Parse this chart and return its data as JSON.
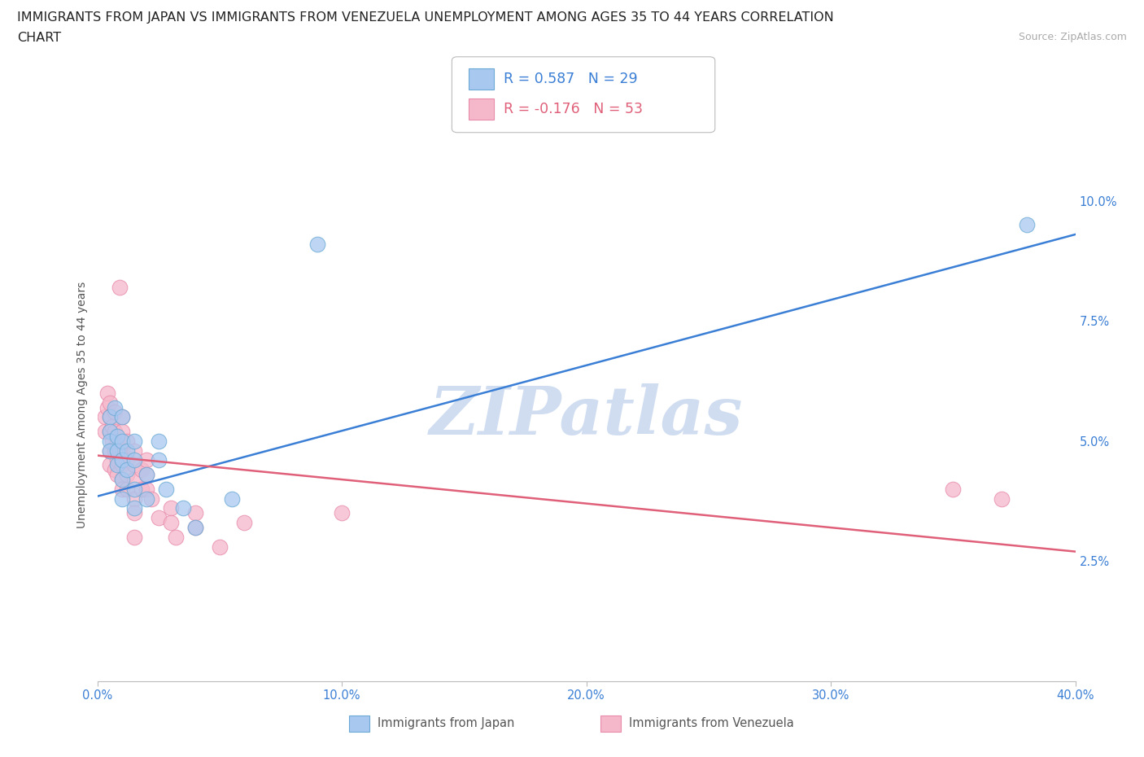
{
  "title_line1": "IMMIGRANTS FROM JAPAN VS IMMIGRANTS FROM VENEZUELA UNEMPLOYMENT AMONG AGES 35 TO 44 YEARS CORRELATION",
  "title_line2": "CHART",
  "source": "Source: ZipAtlas.com",
  "ylabel": "Unemployment Among Ages 35 to 44 years",
  "xlim": [
    0.0,
    0.4
  ],
  "ylim": [
    0.0,
    0.115
  ],
  "xticks": [
    0.0,
    0.1,
    0.2,
    0.3,
    0.4
  ],
  "yticks": [
    0.025,
    0.05,
    0.075,
    0.1
  ],
  "ytick_labels": [
    "2.5%",
    "5.0%",
    "7.5%",
    "10.0%"
  ],
  "xtick_labels": [
    "0.0%",
    "10.0%",
    "20.0%",
    "30.0%",
    "40.0%"
  ],
  "legend_R1": "0.587",
  "legend_N1": "29",
  "legend_R2": "-0.176",
  "legend_N2": "53",
  "japan_color": "#a8c8f0",
  "japan_edge": "#6aaad4",
  "venezuela_color": "#f5b8cb",
  "venezuela_edge": "#e88aaa",
  "japan_scatter": [
    [
      0.005,
      0.055
    ],
    [
      0.005,
      0.052
    ],
    [
      0.005,
      0.05
    ],
    [
      0.005,
      0.048
    ],
    [
      0.007,
      0.057
    ],
    [
      0.008,
      0.051
    ],
    [
      0.008,
      0.048
    ],
    [
      0.008,
      0.045
    ],
    [
      0.01,
      0.055
    ],
    [
      0.01,
      0.05
    ],
    [
      0.01,
      0.046
    ],
    [
      0.01,
      0.042
    ],
    [
      0.01,
      0.038
    ],
    [
      0.012,
      0.048
    ],
    [
      0.012,
      0.044
    ],
    [
      0.015,
      0.05
    ],
    [
      0.015,
      0.046
    ],
    [
      0.015,
      0.04
    ],
    [
      0.015,
      0.036
    ],
    [
      0.02,
      0.043
    ],
    [
      0.02,
      0.038
    ],
    [
      0.025,
      0.05
    ],
    [
      0.025,
      0.046
    ],
    [
      0.028,
      0.04
    ],
    [
      0.035,
      0.036
    ],
    [
      0.04,
      0.032
    ],
    [
      0.055,
      0.038
    ],
    [
      0.09,
      0.091
    ],
    [
      0.38,
      0.095
    ]
  ],
  "venezuela_scatter": [
    [
      0.003,
      0.055
    ],
    [
      0.003,
      0.052
    ],
    [
      0.004,
      0.06
    ],
    [
      0.004,
      0.057
    ],
    [
      0.005,
      0.058
    ],
    [
      0.005,
      0.055
    ],
    [
      0.005,
      0.052
    ],
    [
      0.005,
      0.048
    ],
    [
      0.005,
      0.045
    ],
    [
      0.006,
      0.053
    ],
    [
      0.006,
      0.05
    ],
    [
      0.007,
      0.056
    ],
    [
      0.007,
      0.052
    ],
    [
      0.007,
      0.048
    ],
    [
      0.007,
      0.044
    ],
    [
      0.008,
      0.05
    ],
    [
      0.008,
      0.046
    ],
    [
      0.008,
      0.043
    ],
    [
      0.009,
      0.048
    ],
    [
      0.009,
      0.082
    ],
    [
      0.01,
      0.055
    ],
    [
      0.01,
      0.052
    ],
    [
      0.01,
      0.048
    ],
    [
      0.01,
      0.045
    ],
    [
      0.01,
      0.042
    ],
    [
      0.01,
      0.04
    ],
    [
      0.012,
      0.05
    ],
    [
      0.012,
      0.046
    ],
    [
      0.012,
      0.043
    ],
    [
      0.012,
      0.04
    ],
    [
      0.015,
      0.048
    ],
    [
      0.015,
      0.045
    ],
    [
      0.015,
      0.042
    ],
    [
      0.015,
      0.038
    ],
    [
      0.015,
      0.035
    ],
    [
      0.015,
      0.03
    ],
    [
      0.018,
      0.044
    ],
    [
      0.018,
      0.04
    ],
    [
      0.02,
      0.046
    ],
    [
      0.02,
      0.043
    ],
    [
      0.02,
      0.04
    ],
    [
      0.022,
      0.038
    ],
    [
      0.025,
      0.034
    ],
    [
      0.03,
      0.036
    ],
    [
      0.03,
      0.033
    ],
    [
      0.032,
      0.03
    ],
    [
      0.04,
      0.035
    ],
    [
      0.04,
      0.032
    ],
    [
      0.05,
      0.028
    ],
    [
      0.06,
      0.033
    ],
    [
      0.1,
      0.035
    ],
    [
      0.35,
      0.04
    ],
    [
      0.37,
      0.038
    ]
  ],
  "japan_line_x": [
    0.0,
    0.4
  ],
  "japan_line_y": [
    0.0385,
    0.093
  ],
  "venezuela_line_x": [
    0.0,
    0.4
  ],
  "venezuela_line_y": [
    0.047,
    0.027
  ],
  "japan_line_color": "#3a7fd5",
  "venezuela_line_color": "#e0607a",
  "watermark_text": "ZIPatlas",
  "watermark_color": "#c8d8ef",
  "background_color": "#ffffff",
  "grid_color": "#c8d4e8",
  "title_color": "#222222",
  "title_fontsize": 11.5,
  "axis_label_color": "#555555",
  "axis_label_fontsize": 10,
  "tick_color": "#3a7fd5",
  "tick_fontsize": 10.5,
  "source_color": "#aaaaaa",
  "legend_fontsize": 12.5
}
